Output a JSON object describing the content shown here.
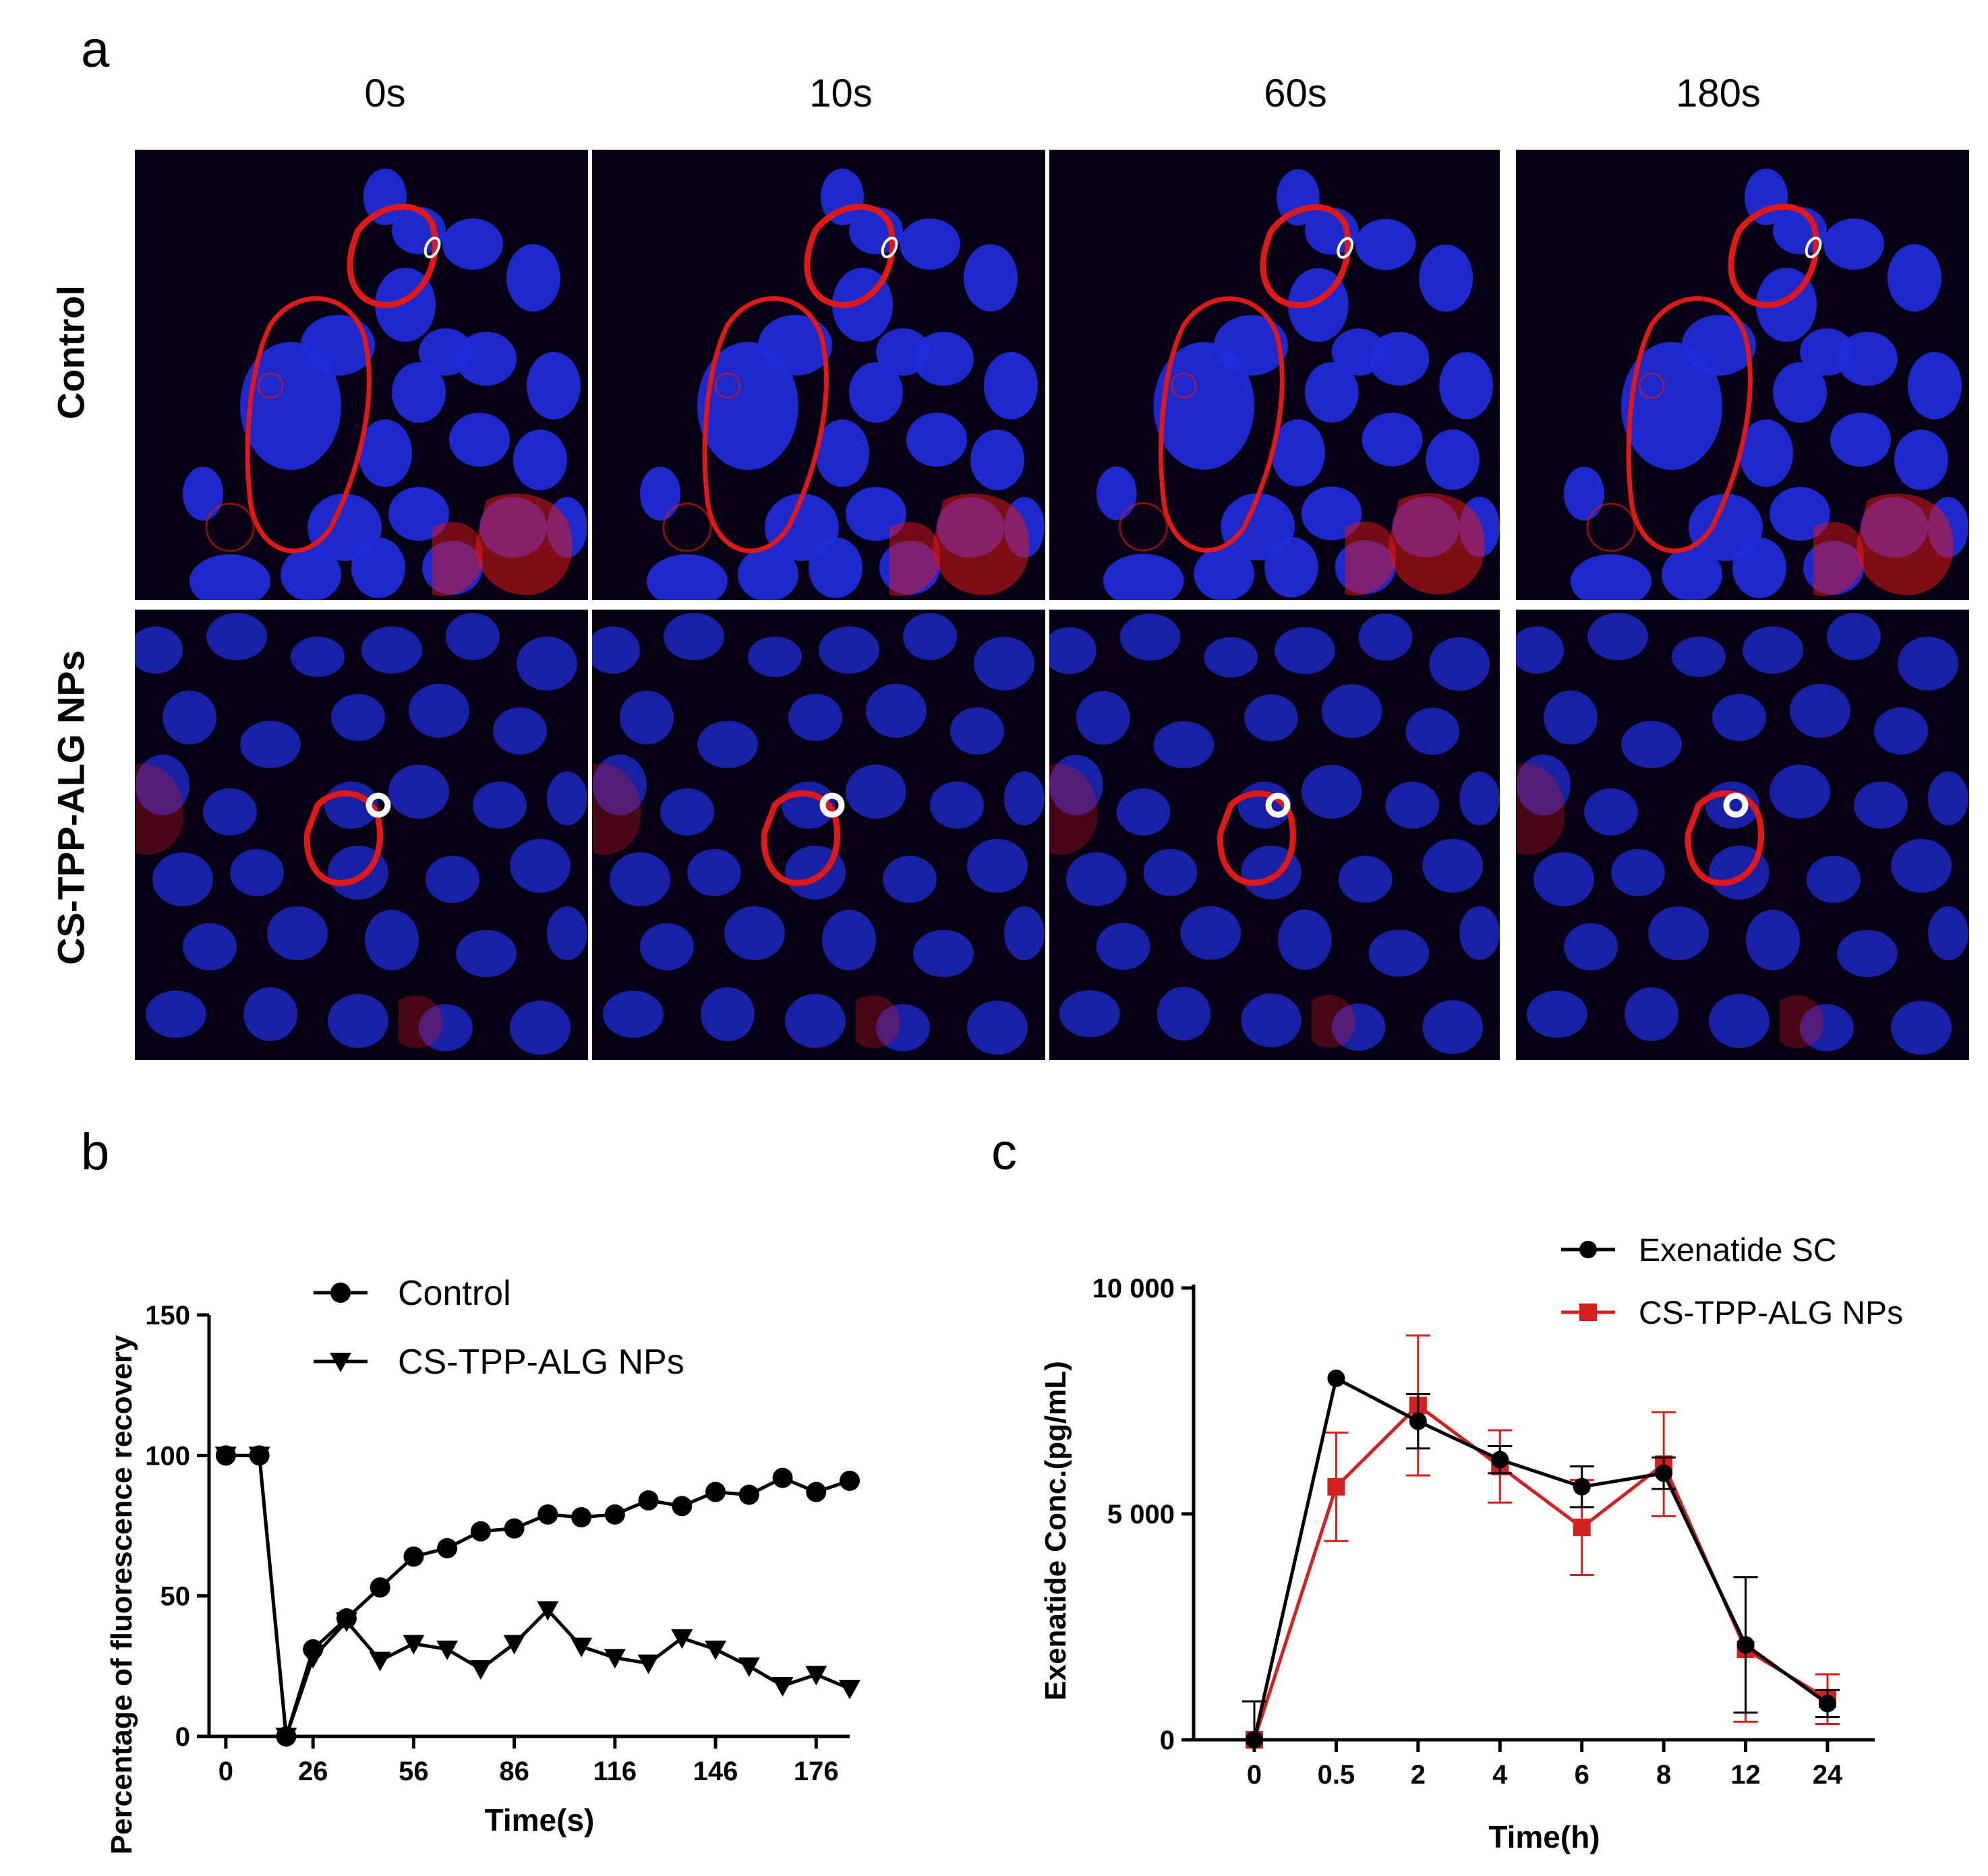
{
  "panel_a": {
    "letter": "a",
    "time_labels": [
      "0s",
      "10s",
      "60s",
      "180s"
    ],
    "row_labels": [
      "Control",
      "CS-TPP-ALG NPs"
    ]
  },
  "panel_b": {
    "letter": "b"
  },
  "panel_c": {
    "letter": "c"
  },
  "colors": {
    "nucleus": "#1f2bd6",
    "membrane": "#e01818",
    "background": "#070014",
    "marker": "#ffffff",
    "series_red": "#d42020",
    "series_black": "#000000"
  },
  "chart_data": [
    {
      "type": "line",
      "panel": "b",
      "xlabel": "Time(s)",
      "ylabel": "Percentage of fluorescence recovery",
      "xticks": [
        "0",
        "26",
        "56",
        "86",
        "116",
        "146",
        "176"
      ],
      "yticks": [
        "0",
        "50",
        "100",
        "150"
      ],
      "xlim": [
        -5,
        186
      ],
      "ylim": [
        0,
        150
      ],
      "legend_position": "top-right",
      "series": [
        {
          "name": "Control",
          "marker": "circle",
          "x": [
            0,
            10,
            18,
            26,
            36,
            46,
            56,
            66,
            76,
            86,
            96,
            106,
            116,
            126,
            136,
            146,
            156,
            166,
            176,
            186
          ],
          "values": [
            100,
            100,
            0,
            31,
            42,
            53,
            64,
            67,
            73,
            74,
            79,
            78,
            79,
            84,
            82,
            87,
            86,
            92,
            87,
            91
          ]
        },
        {
          "name": "CS-TPP-ALG NPs",
          "marker": "triangle-down",
          "x": [
            0,
            10,
            18,
            26,
            36,
            46,
            56,
            66,
            76,
            86,
            96,
            106,
            116,
            126,
            136,
            146,
            156,
            166,
            176,
            186
          ],
          "values": [
            100,
            100,
            0,
            28,
            41,
            27,
            33,
            31,
            24,
            33,
            45,
            32,
            28,
            26,
            35,
            31,
            25,
            18,
            22,
            17
          ]
        }
      ]
    },
    {
      "type": "line",
      "panel": "c",
      "xlabel": "Time(h)",
      "ylabel": "Exenatide Conc.(pg/mL)",
      "categories": [
        "0",
        "0.5",
        "2",
        "4",
        "6",
        "8",
        "12",
        "24"
      ],
      "yticks": [
        "0",
        "5 000",
        "10 000"
      ],
      "ylim": [
        0,
        10000
      ],
      "legend_position": "top-right",
      "series": [
        {
          "name": "Exenatide SC",
          "marker": "circle",
          "values": [
            0,
            8000,
            7050,
            6200,
            5600,
            5900,
            2100,
            800
          ],
          "error": [
            850,
            0,
            600,
            300,
            450,
            350,
            1500,
            300
          ]
        },
        {
          "name": "CS-TPP-ALG NPs",
          "marker": "square",
          "values": [
            0,
            5600,
            7400,
            6050,
            4700,
            6100,
            2000,
            900
          ],
          "error": [
            0,
            1200,
            1550,
            800,
            1050,
            1150,
            1600,
            550
          ]
        }
      ]
    }
  ]
}
